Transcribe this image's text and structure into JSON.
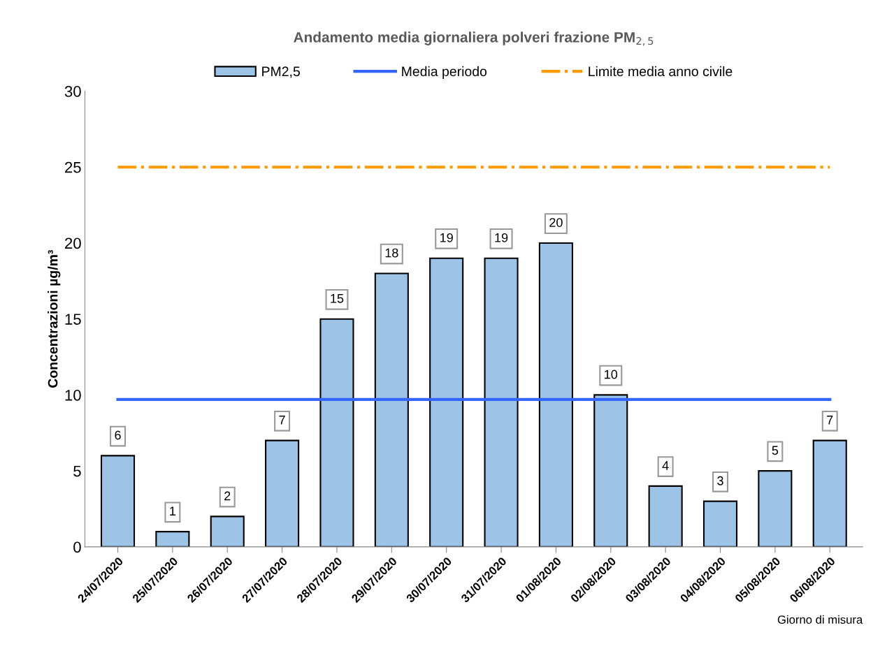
{
  "chart_data": {
    "type": "bar",
    "title": "Andamento media giornaliera polveri frazione PM$_{2,5}$",
    "ylabel": "Concentrazioni µg/m³",
    "xlabel": "Giorno di misura",
    "categories": [
      "24/07/2020",
      "25/07/2020",
      "26/07/2020",
      "27/07/2020",
      "28/07/2020",
      "29/07/2020",
      "30/07/2020",
      "31/07/2020",
      "01/08/2020",
      "02/08/2020",
      "03/08/2020",
      "04/08/2020",
      "05/08/2020",
      "06/08/2020"
    ],
    "series": [
      {
        "name": "PM2,5",
        "color": "#9dc3e6",
        "values": [
          6,
          1,
          2,
          7,
          15,
          18,
          19,
          19,
          20,
          10,
          4,
          3,
          5,
          7
        ],
        "data_labels": true
      },
      {
        "name": "Media periodo",
        "type": "line",
        "color": "#3366ff",
        "line_style": "solid",
        "values": [
          9.7,
          9.7,
          9.7,
          9.7,
          9.7,
          9.7,
          9.7,
          9.7,
          9.7,
          9.7,
          9.7,
          9.7,
          9.7,
          9.7
        ]
      },
      {
        "name": "Limite media anno civile",
        "type": "line",
        "color": "#ff9900",
        "line_style": "dashdot",
        "values": [
          25,
          25,
          25,
          25,
          25,
          25,
          25,
          25,
          25,
          25,
          25,
          25,
          25,
          25
        ]
      }
    ],
    "ylim": [
      0,
      30
    ],
    "yticks": [
      0,
      5,
      10,
      15,
      20,
      25,
      30
    ],
    "grid": false,
    "legend": "top",
    "marker": "none"
  }
}
